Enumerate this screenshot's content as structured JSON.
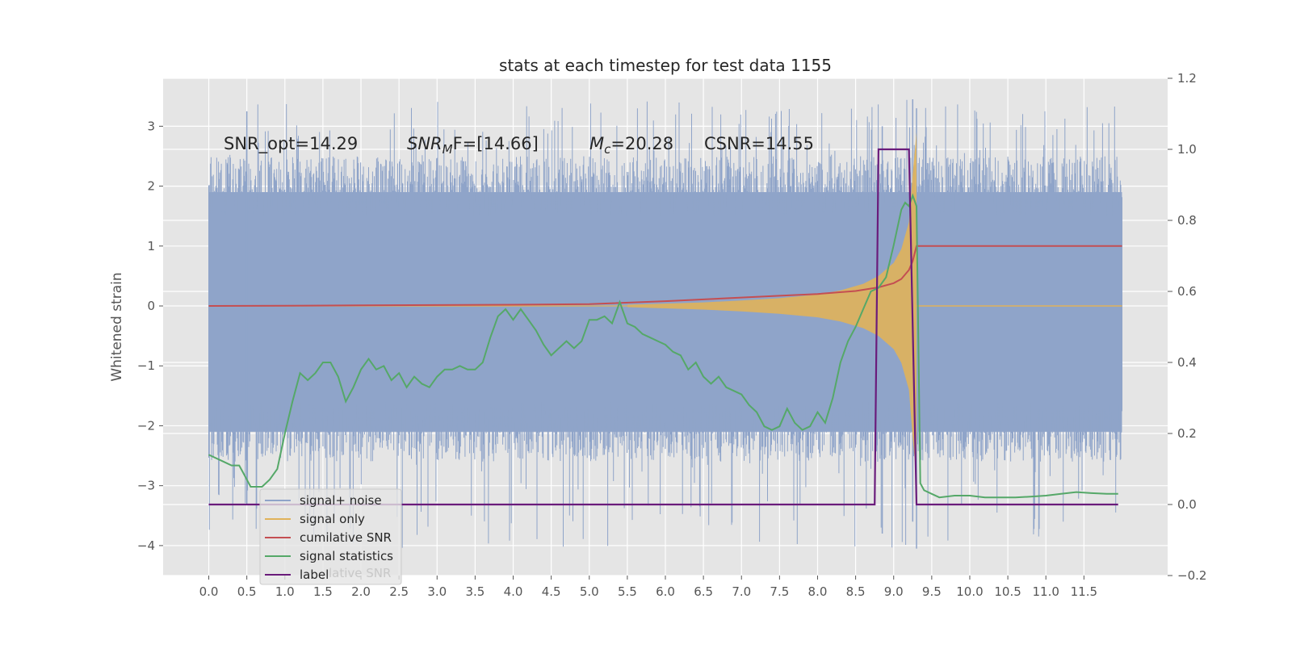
{
  "chart_data": {
    "type": "line",
    "title": "stats at each timestep for test data 1155",
    "xlabel": "",
    "ylabel": "Whitened strain",
    "y2label": "",
    "xlim": [
      -0.6,
      12.6
    ],
    "ylim": [
      -4.5,
      3.8
    ],
    "y2lim": [
      -0.2,
      1.2
    ],
    "xticks": [
      "0.0",
      "0.5",
      "1.0",
      "1.5",
      "2.0",
      "2.5",
      "3.0",
      "3.5",
      "4.0",
      "4.5",
      "5.0",
      "5.5",
      "6.0",
      "6.5",
      "7.0",
      "7.5",
      "8.0",
      "8.5",
      "9.0",
      "9.5",
      "10.0",
      "10.5",
      "11.0",
      "11.5"
    ],
    "yticks": [
      3,
      2,
      1,
      0,
      -1,
      -2,
      -3,
      -4
    ],
    "y2ticks": [
      "1.2",
      "1.0",
      "0.8",
      "0.6",
      "0.4",
      "0.2",
      "0.0",
      "−0.2"
    ],
    "grid": true,
    "legend_position": "lower-left",
    "annotations": [
      "SNR_opt=14.29",
      "SNR",
      "M",
      "F=[14.66]",
      "c",
      "=20.28",
      "CSNR=14.55"
    ],
    "legend_ghost_text": "lative SNR",
    "series": [
      {
        "name": "signal+ noise",
        "axis": "left",
        "color": "#8fa4c9",
        "description": "whitened noise band spanning roughly -2.5 to 2.5 with spikes to about +/-3.4 over x 0 to 12",
        "band": {
          "x_start": 0.0,
          "x_end": 12.0,
          "low": -2.1,
          "high": 1.9,
          "spike_max": 3.45,
          "spike_min": -4.05
        }
      },
      {
        "name": "signal only",
        "axis": "left",
        "color": "#e0b25a",
        "description": "chirp whose envelope grows until merger near x 9.3",
        "envelope": {
          "x": [
            5.5,
            6.0,
            6.5,
            7.0,
            7.5,
            8.0,
            8.3,
            8.6,
            8.8,
            9.0,
            9.1,
            9.2,
            9.25,
            9.3
          ],
          "amplitude": [
            0.02,
            0.04,
            0.06,
            0.09,
            0.13,
            0.19,
            0.26,
            0.37,
            0.5,
            0.72,
            0.95,
            1.4,
            2.2,
            2.9
          ]
        }
      },
      {
        "name": "cumilative SNR",
        "axis": "left",
        "color": "#c44e52",
        "x": [
          0.0,
          1.0,
          2.0,
          3.0,
          4.0,
          5.0,
          6.0,
          7.0,
          7.5,
          8.0,
          8.5,
          8.8,
          9.0,
          9.1,
          9.2,
          9.25,
          9.3,
          12.0
        ],
        "values": [
          0.0,
          0.005,
          0.01,
          0.015,
          0.02,
          0.03,
          0.08,
          0.14,
          0.17,
          0.2,
          0.25,
          0.31,
          0.38,
          0.45,
          0.6,
          0.75,
          1.0,
          1.0
        ]
      },
      {
        "name": "signal statistics",
        "axis": "right",
        "color": "#55a868",
        "x": [
          0.0,
          0.2,
          0.3,
          0.4,
          0.45,
          0.5,
          0.55,
          0.6,
          0.7,
          0.8,
          0.9,
          1.0,
          1.1,
          1.2,
          1.3,
          1.4,
          1.5,
          1.6,
          1.7,
          1.8,
          1.9,
          2.0,
          2.1,
          2.2,
          2.3,
          2.4,
          2.5,
          2.6,
          2.7,
          2.8,
          2.9,
          3.0,
          3.1,
          3.2,
          3.3,
          3.4,
          3.5,
          3.6,
          3.7,
          3.8,
          3.9,
          4.0,
          4.1,
          4.2,
          4.3,
          4.4,
          4.5,
          4.6,
          4.7,
          4.8,
          4.9,
          5.0,
          5.1,
          5.2,
          5.3,
          5.4,
          5.5,
          5.6,
          5.7,
          5.8,
          5.9,
          6.0,
          6.1,
          6.2,
          6.3,
          6.4,
          6.5,
          6.6,
          6.7,
          6.8,
          6.9,
          7.0,
          7.1,
          7.2,
          7.3,
          7.4,
          7.5,
          7.6,
          7.7,
          7.8,
          7.9,
          8.0,
          8.1,
          8.2,
          8.3,
          8.4,
          8.5,
          8.6,
          8.7,
          8.8,
          8.9,
          9.0,
          9.1,
          9.15,
          9.2,
          9.25,
          9.3,
          9.35,
          9.4,
          9.5,
          9.6,
          9.8,
          10.0,
          10.2,
          10.4,
          10.6,
          10.8,
          11.0,
          11.2,
          11.4,
          11.6,
          11.8,
          11.95
        ],
        "values": [
          0.14,
          0.12,
          0.11,
          0.11,
          0.09,
          0.07,
          0.05,
          0.05,
          0.05,
          0.07,
          0.1,
          0.2,
          0.29,
          0.37,
          0.35,
          0.37,
          0.4,
          0.4,
          0.36,
          0.29,
          0.33,
          0.38,
          0.41,
          0.38,
          0.39,
          0.35,
          0.37,
          0.33,
          0.36,
          0.34,
          0.33,
          0.36,
          0.38,
          0.38,
          0.39,
          0.38,
          0.38,
          0.4,
          0.47,
          0.53,
          0.55,
          0.52,
          0.55,
          0.52,
          0.49,
          0.45,
          0.42,
          0.44,
          0.46,
          0.44,
          0.46,
          0.52,
          0.52,
          0.53,
          0.51,
          0.57,
          0.51,
          0.5,
          0.48,
          0.47,
          0.46,
          0.45,
          0.43,
          0.42,
          0.38,
          0.4,
          0.36,
          0.34,
          0.36,
          0.33,
          0.32,
          0.31,
          0.28,
          0.26,
          0.22,
          0.21,
          0.22,
          0.27,
          0.23,
          0.21,
          0.22,
          0.26,
          0.23,
          0.3,
          0.4,
          0.46,
          0.5,
          0.55,
          0.6,
          0.61,
          0.64,
          0.73,
          0.83,
          0.85,
          0.84,
          0.87,
          0.84,
          0.06,
          0.04,
          0.03,
          0.02,
          0.025,
          0.025,
          0.02,
          0.02,
          0.02,
          0.022,
          0.025,
          0.03,
          0.035,
          0.032,
          0.03,
          0.03
        ]
      },
      {
        "name": "label",
        "axis": "right",
        "color": "#6a1b7b",
        "x": [
          0.0,
          8.75,
          8.8,
          9.2,
          9.3,
          11.95
        ],
        "values": [
          0.0,
          0.0,
          1.0,
          1.0,
          0.0,
          0.0
        ]
      }
    ]
  }
}
